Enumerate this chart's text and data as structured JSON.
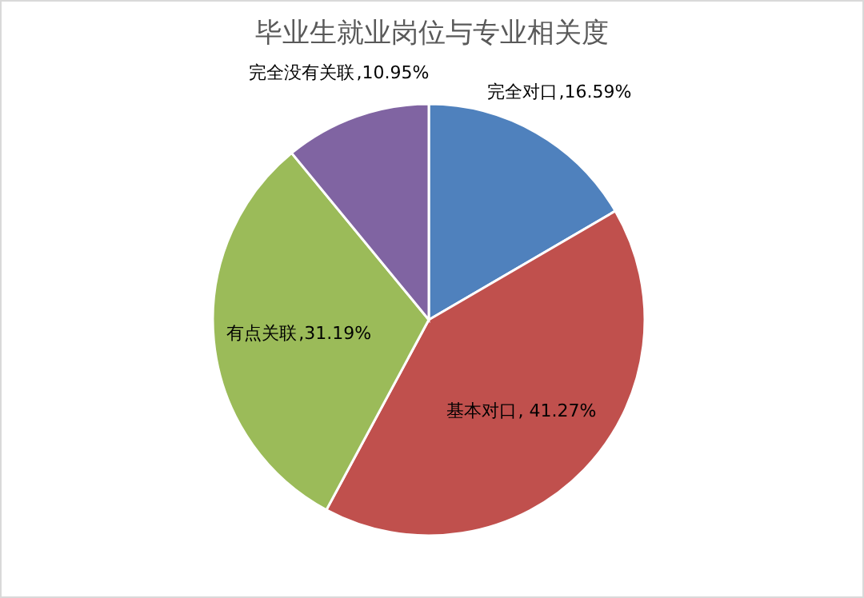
{
  "chart_data": {
    "type": "pie",
    "title": "毕业生就业岗位与专业相关度",
    "categories": [
      "完全对口",
      "基本对口",
      "有点关联",
      "完全没有关联"
    ],
    "values": [
      16.59,
      41.27,
      31.19,
      10.95
    ],
    "value_labels": [
      ",16.59%",
      ", 41.27%",
      ",31.19%",
      ",10.95%"
    ],
    "colors": [
      "#4f81bd",
      "#c0504d",
      "#9bbb59",
      "#8064a2"
    ]
  }
}
